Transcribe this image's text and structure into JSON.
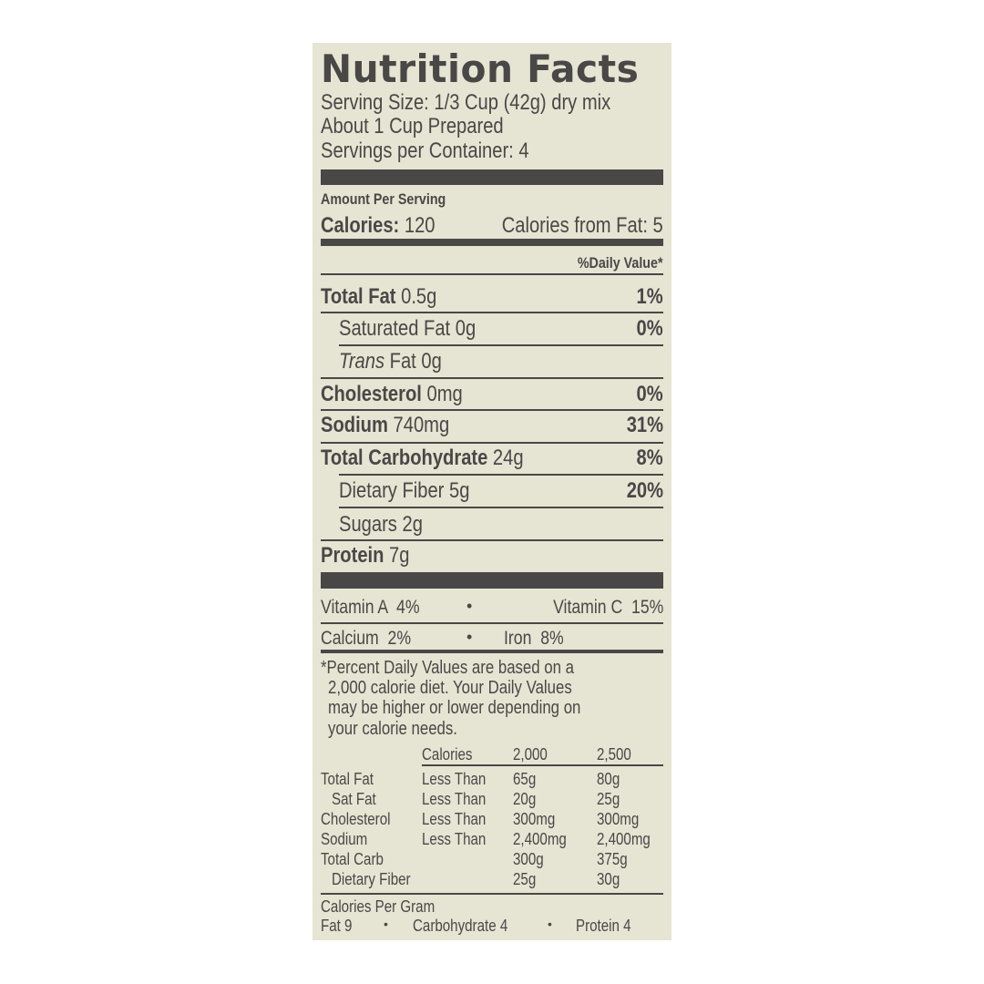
{
  "title": "Nutrition Facts",
  "serving_size": "Serving Size: 1/3 Cup (42g) dry mix",
  "prepared": "About 1 Cup Prepared",
  "servings": "Servings per Container: 4",
  "amount_per_serving": "Amount Per Serving",
  "calories_label": "Calories:",
  "calories_value": "120",
  "calories_from_fat": "Calories from Fat: 5",
  "daily_value_header": "%Daily Value*",
  "nutrients": [
    {
      "name": "Total Fat",
      "amount": "0.5g",
      "dv": "1%"
    },
    {
      "name": "Saturated Fat",
      "amount": "0g",
      "dv": "0%"
    },
    {
      "name": "Trans",
      "suffix": "Fat 0g",
      "dv": ""
    },
    {
      "name": "Cholesterol",
      "amount": "0mg",
      "dv": "0%"
    },
    {
      "name": "Sodium",
      "amount": "740mg",
      "dv": "31%"
    },
    {
      "name": "Total Carbohydrate",
      "amount": "24g",
      "dv": "8%"
    },
    {
      "name": "Dietary Fiber",
      "amount": "5g",
      "dv": "20%"
    },
    {
      "name": "Sugars",
      "amount": "2g",
      "dv": ""
    },
    {
      "name": "Protein",
      "amount": "7g",
      "dv": ""
    }
  ],
  "vitamins": {
    "vitamin_a": "Vitamin A  4%",
    "vitamin_c": "Vitamin C  15%",
    "calcium": "Calcium  2%",
    "iron": "Iron  8%",
    "bullet": "•"
  },
  "footnote": [
    "*Percent Daily Values are based on a",
    "2,000 calorie diet.  Your Daily Values",
    "may be higher or lower depending on",
    "your calorie needs."
  ],
  "dv_table": {
    "header": [
      "",
      "Calories",
      "2,000",
      "2,500"
    ],
    "rows": [
      [
        "Total Fat",
        "Less Than",
        "65g",
        "80g"
      ],
      [
        "Sat Fat",
        "Less Than",
        "20g",
        "25g"
      ],
      [
        "Cholesterol",
        "Less Than",
        "300mg",
        "300mg"
      ],
      [
        "Sodium",
        "Less Than",
        "2,400mg",
        "2,400mg"
      ],
      [
        "Total Carb",
        "",
        "300g",
        "375g"
      ],
      [
        "Dietary Fiber",
        "",
        "25g",
        "30g"
      ]
    ]
  },
  "calories_per_gram": {
    "label": "Calories Per Gram",
    "fat": "Fat 9",
    "carb": "Carbohydrate 4",
    "protein": "Protein 4",
    "bullet": "•"
  }
}
